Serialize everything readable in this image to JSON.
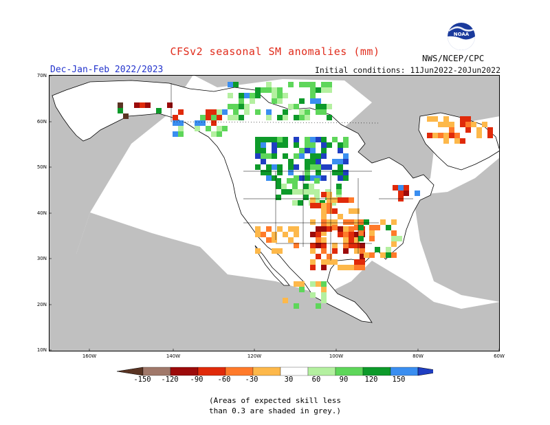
{
  "header": {
    "title": "CFSv2 seasonal SM anomalies (mm)",
    "period": "Dec-Jan-Feb 2022/2023",
    "initial_conditions": "Initial conditions: 11Jun2022-20Jun2022",
    "agency": "NWS/NCEP/CPC",
    "logo_text": "NOAA"
  },
  "map": {
    "lat_labels": [
      "70N",
      "60N",
      "50N",
      "40N",
      "30N",
      "20N",
      "10N"
    ],
    "lon_labels": [
      "160W",
      "140W",
      "120W",
      "100W",
      "80W",
      "60W"
    ],
    "colors": {
      "land": "#ffffff",
      "low_skill": "#c0c0c0",
      "ocean": "#ffffff"
    }
  },
  "legend": {
    "labels": [
      "-150",
      "-120",
      "-90",
      "-60",
      "-30",
      "30",
      "60",
      "90",
      "120",
      "150"
    ],
    "bins": [
      {
        "range": "< -150",
        "color": "#5a3423"
      },
      {
        "range": "-150 to -120",
        "color": "#a0786a"
      },
      {
        "range": "-120 to -90",
        "color": "#9c0a0a"
      },
      {
        "range": "-90 to -60",
        "color": "#e02a0a"
      },
      {
        "range": "-60 to -30",
        "color": "#ff7a2a"
      },
      {
        "range": "-30 to -0",
        "color": "#fdb84a"
      },
      {
        "range": "-30 to 30",
        "color": "#ffffff"
      },
      {
        "range": "30 to 60",
        "color": "#b4f0a0"
      },
      {
        "range": "60 to 90",
        "color": "#5ed65a"
      },
      {
        "range": "90 to 120",
        "color": "#0d9a2a"
      },
      {
        "range": "120 to 150",
        "color": "#3a8ef0"
      },
      {
        "range": "> 150",
        "color": "#1f3ec2"
      }
    ]
  },
  "note": {
    "line1": "(Areas of expected skill less",
    "line2": "than 0.3 are shaded in grey.)"
  }
}
